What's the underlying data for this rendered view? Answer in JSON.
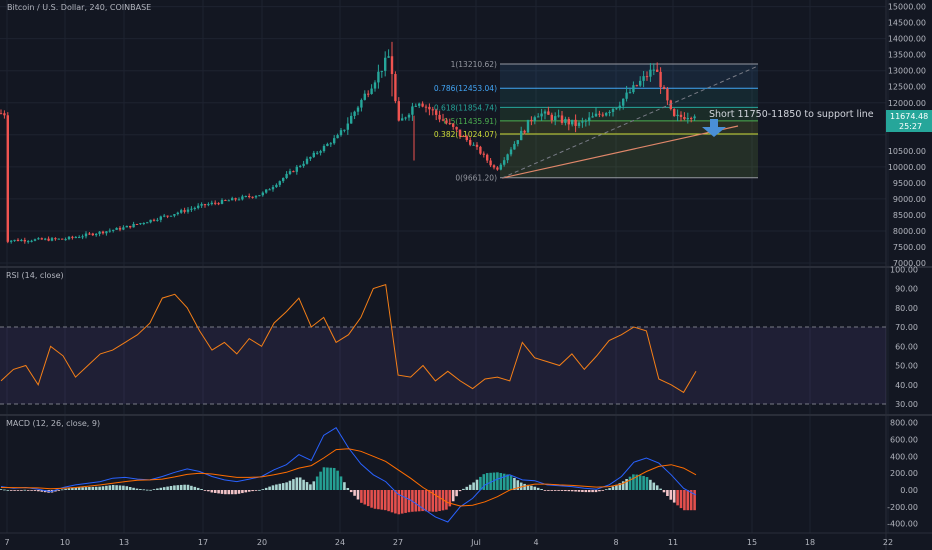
{
  "header": {
    "title": "Bitcoin / U.S. Dollar, 240, COINBASE"
  },
  "colors": {
    "background": "#131722",
    "grid": "#1e2330",
    "up": "#26a69a",
    "down": "#ef5350",
    "rsi_line": "#f57f17",
    "macd_line": "#2962ff",
    "signal_line": "#ff6d00",
    "price_badge": "#26a69a",
    "arrow": "#4a8fd6"
  },
  "price_axis": {
    "tick_labels": [
      "15000.00",
      "14000.00",
      "13000.00",
      "12000.00",
      "11000.00",
      "10000.00",
      "9000.00",
      "8000.00",
      "7000.00"
    ],
    "extra_ticks": [
      "14500.00",
      "13500.00",
      "12500.00",
      "11500.00",
      "10500.00",
      "9500.00",
      "8500.00",
      "7500.00"
    ],
    "last_price": "11674.48",
    "countdown": "25:27"
  },
  "rsi_panel": {
    "title": "RSI (14, close)",
    "tick_labels": [
      "100.00",
      "90.00",
      "80.00",
      "70.00",
      "60.00",
      "50.00",
      "40.00",
      "30.00"
    ],
    "upper_band": 70,
    "lower_band": 30
  },
  "macd_panel": {
    "title": "MACD (12, 26, close, 9)",
    "tick_labels": [
      "800.00",
      "600.00",
      "400.00",
      "200.00",
      "0.00",
      "-200.00",
      "-400.00"
    ]
  },
  "time_axis": {
    "labels": [
      "7",
      "10",
      "13",
      "17",
      "20",
      "24",
      "27",
      "Jul",
      "4",
      "8",
      "11",
      "15",
      "18",
      "22"
    ]
  },
  "annotations": {
    "short_note": "Short 11750-11850 to support line",
    "fib_levels": [
      {
        "label": "1(13210.62)",
        "price": 13210.62,
        "color": "#9598a1"
      },
      {
        "label": "0.786(12453.04)",
        "price": 12453.04,
        "color": "#42a5f5"
      },
      {
        "label": "0.618(11854.74)",
        "price": 11854.74,
        "color": "#26a69a"
      },
      {
        "label": "0.5(11435.91)",
        "price": 11435.91,
        "color": "#4caf50"
      },
      {
        "label": "0.382(11024.07)",
        "price": 11024.07,
        "color": "#cddc39"
      },
      {
        "label": "0(9661.20)",
        "price": 9661.2,
        "color": "#9598a1"
      }
    ]
  },
  "chart_data": [
    {
      "type": "candlestick",
      "title": "Bitcoin / U.S. Dollar, 240, COINBASE",
      "ylim": [
        6800,
        15200
      ],
      "x_ticks": [
        "7",
        "10",
        "13",
        "17",
        "20",
        "24",
        "27",
        "Jul",
        "4",
        "8",
        "11",
        "15",
        "18",
        "22"
      ],
      "close_path": [
        {
          "x": "7",
          "y": 7700
        },
        {
          "x": "10",
          "y": 7750
        },
        {
          "x": "13",
          "y": 8100
        },
        {
          "x": "17",
          "y": 8800
        },
        {
          "x": "20",
          "y": 9150
        },
        {
          "x": "24",
          "y": 11000
        },
        {
          "x": "26",
          "y": 13500
        },
        {
          "x": "27",
          "y": 11300
        },
        {
          "x": "28",
          "y": 12100
        },
        {
          "x": "Jul",
          "y": 10600
        },
        {
          "x": "2",
          "y": 9900
        },
        {
          "x": "4",
          "y": 11700
        },
        {
          "x": "6",
          "y": 11300
        },
        {
          "x": "8",
          "y": 11900
        },
        {
          "x": "10",
          "y": 13100
        },
        {
          "x": "11",
          "y": 11500
        },
        {
          "x": "12",
          "y": 11674
        }
      ]
    },
    {
      "type": "line",
      "title": "RSI (14, close)",
      "ylim": [
        25,
        100
      ],
      "x_ticks": [
        "7",
        "10",
        "13",
        "17",
        "20",
        "24",
        "27",
        "Jul",
        "4",
        "8",
        "11",
        "15",
        "18",
        "22"
      ],
      "series": [
        {
          "name": "RSI",
          "values": [
            42,
            48,
            50,
            40,
            60,
            55,
            44,
            50,
            56,
            58,
            62,
            66,
            72,
            85,
            87,
            80,
            68,
            58,
            62,
            56,
            64,
            60,
            72,
            78,
            85,
            70,
            75,
            62,
            66,
            75,
            90,
            92,
            45,
            44,
            50,
            42,
            47,
            42,
            38,
            43,
            44,
            42,
            62,
            54,
            52,
            50,
            56,
            48,
            55,
            63,
            66,
            70,
            68,
            43,
            40,
            36,
            47
          ]
        }
      ]
    },
    {
      "type": "line",
      "title": "MACD (12, 26, close, 9)",
      "ylim": [
        -450,
        850
      ],
      "x_ticks": [
        "7",
        "10",
        "13",
        "17",
        "20",
        "24",
        "27",
        "Jul",
        "4",
        "8",
        "11",
        "15",
        "18",
        "22"
      ],
      "series": [
        {
          "name": "MACD",
          "values": [
            40,
            20,
            30,
            10,
            -20,
            30,
            60,
            80,
            100,
            140,
            150,
            130,
            120,
            160,
            210,
            250,
            220,
            160,
            120,
            100,
            130,
            160,
            240,
            300,
            420,
            350,
            650,
            740,
            500,
            310,
            180,
            100,
            -50,
            -120,
            -220,
            -320,
            -380,
            -200,
            -100,
            60,
            130,
            180,
            120,
            110,
            60,
            50,
            40,
            20,
            10,
            60,
            160,
            330,
            380,
            320,
            180,
            20,
            -60
          ]
        },
        {
          "name": "Signal",
          "values": [
            30,
            28,
            27,
            25,
            15,
            20,
            30,
            45,
            60,
            80,
            100,
            115,
            120,
            130,
            155,
            185,
            200,
            190,
            170,
            150,
            150,
            155,
            180,
            210,
            260,
            290,
            380,
            480,
            490,
            460,
            400,
            340,
            240,
            140,
            30,
            -60,
            -150,
            -190,
            -180,
            -140,
            -80,
            0,
            40,
            70,
            70,
            60,
            55,
            45,
            35,
            40,
            70,
            140,
            220,
            280,
            300,
            260,
            180
          ]
        },
        {
          "name": "Histogram",
          "values": [
            10,
            -8,
            3,
            -15,
            -35,
            10,
            30,
            35,
            40,
            60,
            50,
            15,
            0,
            30,
            55,
            65,
            20,
            -30,
            -50,
            -50,
            -20,
            5,
            60,
            90,
            160,
            60,
            270,
            260,
            10,
            -150,
            -220,
            -240,
            -290,
            -260,
            -250,
            -260,
            -230,
            -10,
            80,
            200,
            210,
            180,
            80,
            40,
            -10,
            -10,
            -15,
            -25,
            -25,
            20,
            90,
            190,
            160,
            40,
            -120,
            -240,
            -240
          ]
        }
      ]
    }
  ]
}
